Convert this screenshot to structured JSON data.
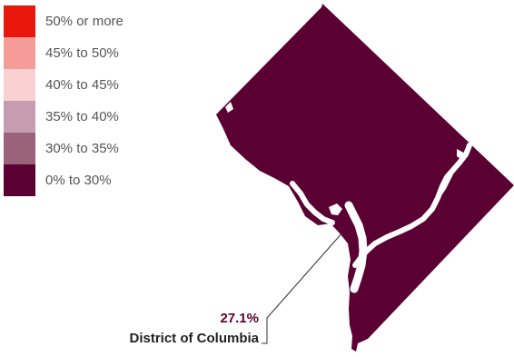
{
  "legend": {
    "items": [
      {
        "label": "50% or more",
        "color": "#e8180c"
      },
      {
        "label": "45% to 50%",
        "color": "#f59c98"
      },
      {
        "label": "40% to 45%",
        "color": "#fbd0d0"
      },
      {
        "label": "35% to 40%",
        "color": "#c69db0"
      },
      {
        "label": "30% to 35%",
        "color": "#9b6379"
      },
      {
        "label": "0% to 30%",
        "color": "#5b0032"
      }
    ]
  },
  "map": {
    "region_name": "District of Columbia",
    "region_value": "27.1%",
    "fill_color": "#5b0032",
    "water_color": "#ffffff"
  }
}
